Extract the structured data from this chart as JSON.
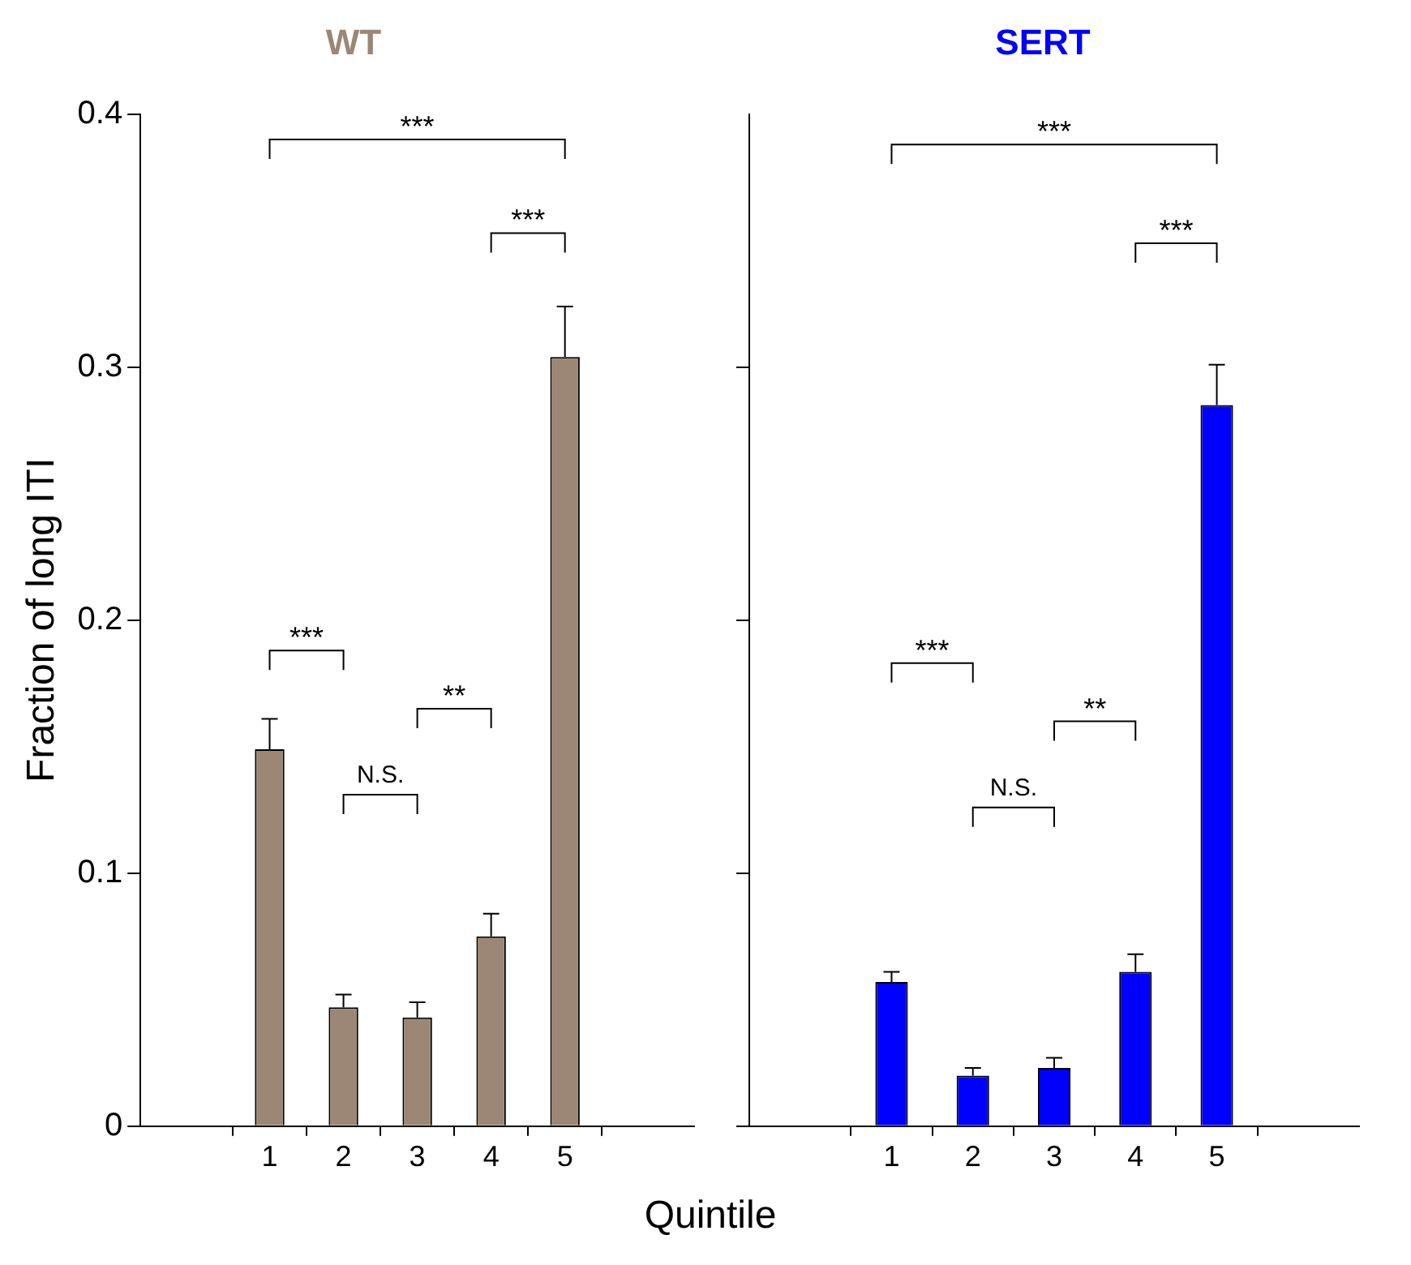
{
  "chart_data": [
    {
      "type": "bar",
      "title": "WT",
      "ylabel": "Fraction of long ITI",
      "xlabel": "Quintile",
      "categories": [
        "1",
        "2",
        "3",
        "4",
        "5"
      ],
      "series": [
        {
          "color": "#9c8776",
          "values": [
            0.149,
            0.047,
            0.043,
            0.075,
            0.304
          ],
          "errors": [
            [
              0.149,
              0.161
            ],
            [
              0.047,
              0.052
            ],
            [
              0.043,
              0.049
            ],
            [
              0.075,
              0.084
            ],
            [
              0.304,
              0.324
            ]
          ]
        }
      ],
      "ylim": [
        0,
        0.4
      ],
      "yticks": [
        0,
        0.1,
        0.2,
        0.3,
        0.4
      ],
      "grid": false,
      "legend": false,
      "annotations": [
        "***",
        "***",
        "***",
        "N.S.",
        "**"
      ]
    },
    {
      "type": "bar",
      "title": "SERT",
      "categories": [
        "1",
        "2",
        "3",
        "4",
        "5"
      ],
      "series": [
        {
          "color": "#0000ff",
          "values": [
            0.057,
            0.02,
            0.023,
            0.061,
            0.285
          ],
          "errors": [
            [
              0.057,
              0.061
            ],
            [
              0.02,
              0.023
            ],
            [
              0.023,
              0.027
            ],
            [
              0.061,
              0.068
            ],
            [
              0.285,
              0.301
            ]
          ]
        }
      ],
      "ylim": [
        0,
        0.4
      ],
      "yticks": [
        {
          "value": 0,
          "label": null
        },
        {
          "value": 0.1,
          "label": null
        },
        {
          "value": 0.2,
          "label": null
        },
        {
          "value": 0.3,
          "label": null
        }
      ],
      "grid": false,
      "legend": false,
      "tick_labels": "x",
      "annotations": [
        "***",
        "***",
        "***",
        "N.S.",
        "**"
      ]
    }
  ]
}
